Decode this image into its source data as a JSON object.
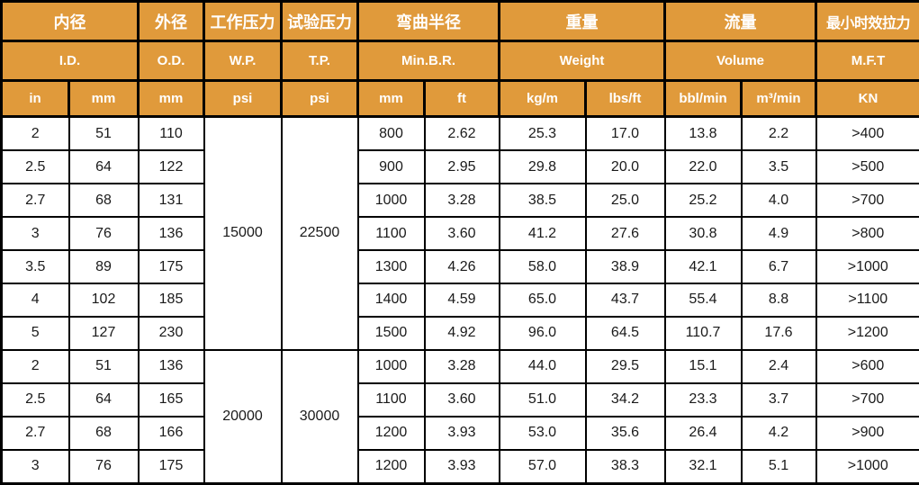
{
  "colors": {
    "header_bg": "#E09A3B",
    "header_text": "#FFFFFF",
    "grid": "#000000",
    "cell_bg": "#FFFFFF",
    "cell_text": "#1A1A1A"
  },
  "chart_data": {
    "type": "table",
    "header": {
      "row_chinese": [
        "内径",
        "外径",
        "工作压力",
        "试验压力",
        "弯曲半径",
        "重量",
        "流量",
        "最小时效拉力"
      ],
      "row_english": [
        "I.D.",
        "O.D.",
        "W.P.",
        "T.P.",
        "Min.B.R.",
        "Weight",
        "Volume",
        "M.F.T"
      ],
      "row_units": [
        "in",
        "mm",
        "mm",
        "psi",
        "psi",
        "mm",
        "ft",
        "kg/m",
        "lbs/ft",
        "bbl/min",
        "m³/min",
        "KN"
      ]
    },
    "groups": [
      {
        "wp": "15000",
        "tp": "22500",
        "rows": [
          [
            "2",
            "51",
            "110",
            "800",
            "2.62",
            "25.3",
            "17.0",
            "13.8",
            "2.2",
            ">400"
          ],
          [
            "2.5",
            "64",
            "122",
            "900",
            "2.95",
            "29.8",
            "20.0",
            "22.0",
            "3.5",
            ">500"
          ],
          [
            "2.7",
            "68",
            "131",
            "1000",
            "3.28",
            "38.5",
            "25.0",
            "25.2",
            "4.0",
            ">700"
          ],
          [
            "3",
            "76",
            "136",
            "1100",
            "3.60",
            "41.2",
            "27.6",
            "30.8",
            "4.9",
            ">800"
          ],
          [
            "3.5",
            "89",
            "175",
            "1300",
            "4.26",
            "58.0",
            "38.9",
            "42.1",
            "6.7",
            ">1000"
          ],
          [
            "4",
            "102",
            "185",
            "1400",
            "4.59",
            "65.0",
            "43.7",
            "55.4",
            "8.8",
            ">1100"
          ],
          [
            "5",
            "127",
            "230",
            "1500",
            "4.92",
            "96.0",
            "64.5",
            "110.7",
            "17.6",
            ">1200"
          ]
        ]
      },
      {
        "wp": "20000",
        "tp": "30000",
        "rows": [
          [
            "2",
            "51",
            "136",
            "1000",
            "3.28",
            "44.0",
            "29.5",
            "15.1",
            "2.4",
            ">600"
          ],
          [
            "2.5",
            "64",
            "165",
            "1100",
            "3.60",
            "51.0",
            "34.2",
            "23.3",
            "3.7",
            ">700"
          ],
          [
            "2.7",
            "68",
            "166",
            "1200",
            "3.93",
            "53.0",
            "35.6",
            "26.4",
            "4.2",
            ">900"
          ],
          [
            "3",
            "76",
            "175",
            "1200",
            "3.93",
            "57.0",
            "38.3",
            "32.1",
            "5.1",
            ">1000"
          ]
        ]
      }
    ]
  }
}
